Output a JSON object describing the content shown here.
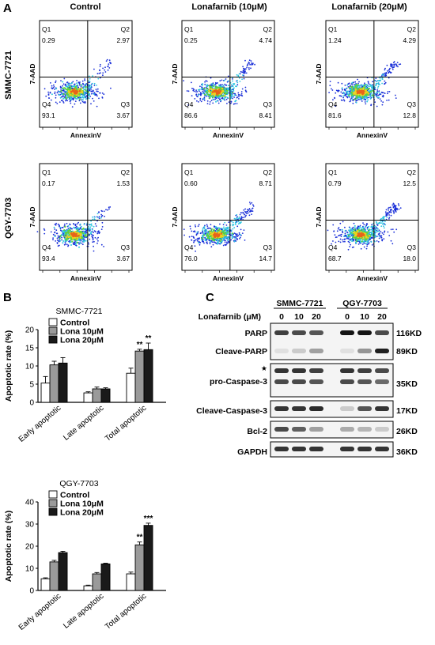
{
  "panel_a": {
    "letter": "A",
    "columns": [
      "Control",
      "Lonafarnib (10μM)",
      "Lonafarnib (20μM)"
    ],
    "rows": [
      "SMMC-7721",
      "QGY-7703"
    ],
    "xlabel": "AnnexinV",
    "ylabel": "7-AAD",
    "plots": [
      {
        "q1": "0.29",
        "q2": "2.97",
        "q3": "3.67",
        "q4": "93.1",
        "spread": 0.8
      },
      {
        "q1": "0.25",
        "q2": "4.74",
        "q3": "8.41",
        "q4": "86.6",
        "spread": 1.2
      },
      {
        "q1": "1.24",
        "q2": "4.29",
        "q3": "12.8",
        "q4": "81.6",
        "spread": 1.6
      },
      {
        "q1": "0.17",
        "q2": "1.53",
        "q3": "3.67",
        "q4": "93.4",
        "spread": 0.8
      },
      {
        "q1": "0.60",
        "q2": "8.71",
        "q3": "14.7",
        "q4": "76.0",
        "spread": 1.6
      },
      {
        "q1": "0.79",
        "q2": "12.5",
        "q3": "18.0",
        "q4": "68.7",
        "spread": 2.1
      }
    ]
  },
  "panel_b": {
    "letter": "B",
    "colors": [
      "#ffffff",
      "#9a9a9a",
      "#1a1a1a"
    ],
    "chart_data": [
      {
        "type": "bar",
        "title": "SMMC-7721",
        "ylabel": "Apoptotic rate (%)",
        "ylim": [
          0,
          20
        ],
        "yticks": [
          0,
          5,
          10,
          15,
          20
        ],
        "categories": [
          "Early apoptotic",
          "Late apoptotic",
          "Total apoptotic"
        ],
        "series": [
          {
            "name": "Control",
            "values": [
              5.3,
              2.6,
              8.0
            ],
            "errors": [
              1.8,
              0.3,
              1.4
            ]
          },
          {
            "name": "Lona 10μM",
            "values": [
              10.3,
              3.7,
              14.1
            ],
            "errors": [
              1.0,
              0.5,
              0.5
            ]
          },
          {
            "name": "Lona 20μM",
            "values": [
              10.8,
              3.7,
              14.5
            ],
            "errors": [
              1.5,
              0.3,
              1.8
            ]
          }
        ],
        "annotations": [
          {
            "category": 2,
            "series": 1,
            "text": "**"
          },
          {
            "category": 2,
            "series": 2,
            "text": "**"
          }
        ]
      },
      {
        "type": "bar",
        "title": "QGY-7703",
        "ylabel": "Apoptotic rate (%)",
        "ylim": [
          0,
          40
        ],
        "yticks": [
          0,
          10,
          20,
          30,
          40
        ],
        "categories": [
          "Early apoptotic",
          "Late apoptotic",
          "Total apoptotic"
        ],
        "series": [
          {
            "name": "Control",
            "values": [
              5.3,
              2.1,
              7.5
            ],
            "errors": [
              0.4,
              0.3,
              0.8
            ]
          },
          {
            "name": "Lona 10μM",
            "values": [
              12.9,
              7.5,
              20.6
            ],
            "errors": [
              0.7,
              0.6,
              1.3
            ]
          },
          {
            "name": "Lona 20μM",
            "values": [
              17.1,
              12.0,
              29.4
            ],
            "errors": [
              0.6,
              0.3,
              1.0
            ]
          }
        ],
        "annotations": [
          {
            "category": 2,
            "series": 1,
            "text": "**"
          },
          {
            "category": 2,
            "series": 2,
            "text": "***"
          }
        ]
      }
    ]
  },
  "panel_c": {
    "letter": "C",
    "treatment_label": "Lonafarnib (μM)",
    "cell_lines": [
      "SMMC-7721",
      "QGY-7703"
    ],
    "doses": [
      "0",
      "10",
      "20",
      "0",
      "10",
      "20"
    ],
    "star": "★",
    "blots": [
      {
        "labels": [
          "PARP",
          "Cleave-PARP"
        ],
        "sizes": [
          "116KD",
          "89KD"
        ],
        "band_sets": [
          [
            0.8,
            0.75,
            0.7,
            1.0,
            1.0,
            0.75
          ],
          [
            0.05,
            0.15,
            0.35,
            0.05,
            0.4,
            0.95
          ]
        ]
      },
      {
        "labels": [
          "pro-Caspase-3"
        ],
        "sizes": [
          "35KD"
        ],
        "band_sets": [
          [
            0.85,
            0.85,
            0.8,
            0.85,
            0.8,
            0.75
          ],
          [
            0.75,
            0.75,
            0.7,
            0.75,
            0.7,
            0.6
          ]
        ]
      },
      {
        "labels": [
          "Cleave-Caspase-3"
        ],
        "sizes": [
          "17KD"
        ],
        "band_sets": [
          [
            0.85,
            0.85,
            0.9,
            0.15,
            0.7,
            0.85
          ]
        ]
      },
      {
        "labels": [
          "Bcl-2"
        ],
        "sizes": [
          "26KD"
        ],
        "band_sets": [
          [
            0.75,
            0.65,
            0.35,
            0.3,
            0.25,
            0.15
          ]
        ]
      },
      {
        "labels": [
          "GAPDH"
        ],
        "sizes": [
          "36KD"
        ],
        "band_sets": [
          [
            0.85,
            0.85,
            0.85,
            0.85,
            0.85,
            0.85
          ]
        ]
      }
    ]
  }
}
